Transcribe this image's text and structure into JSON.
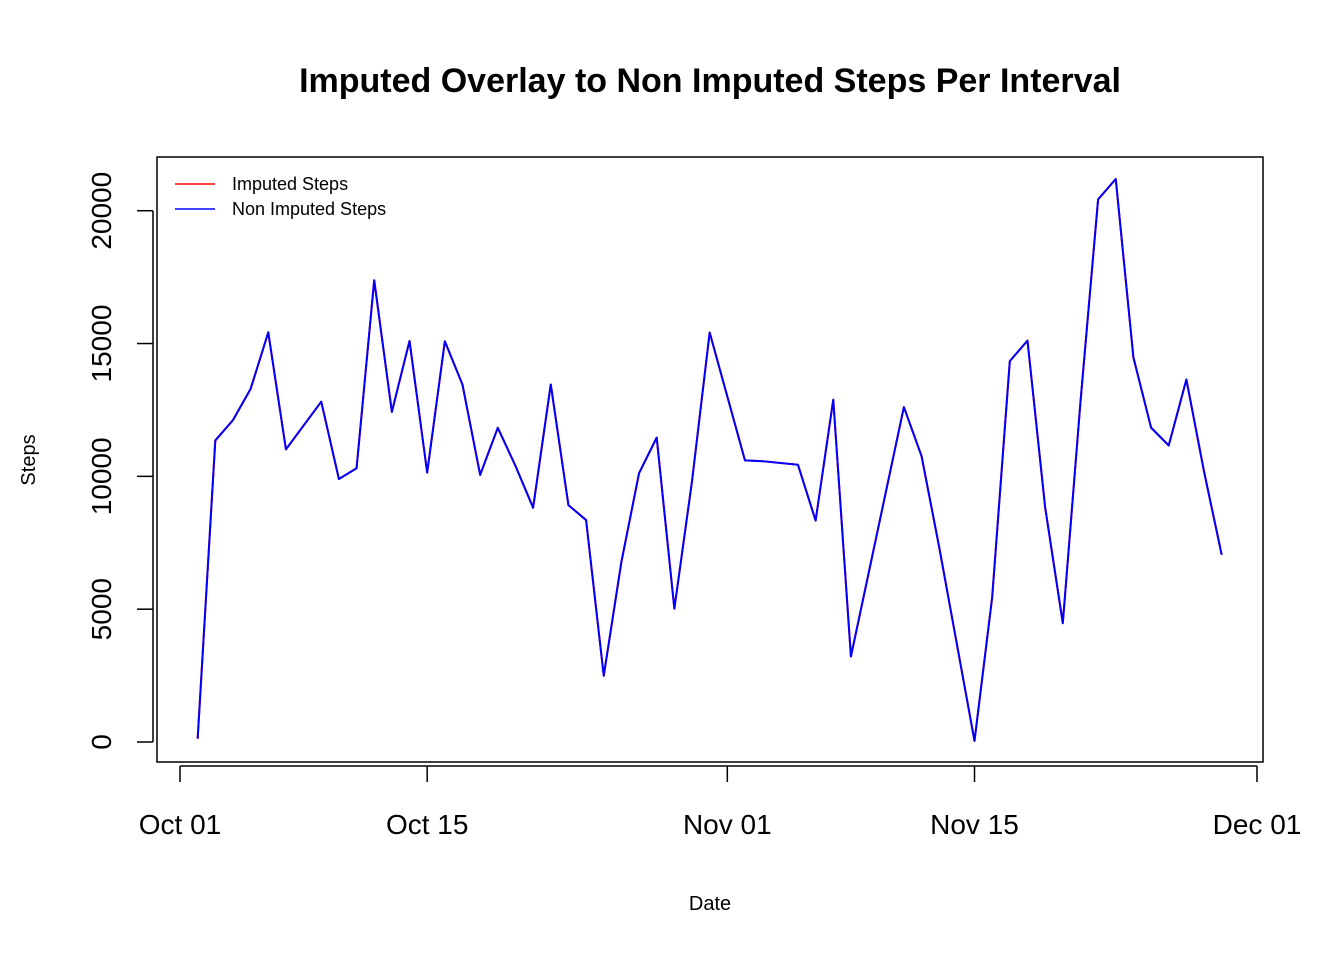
{
  "chart_data": {
    "type": "line",
    "title": "Imputed Overlay to Non Imputed Steps Per Interval",
    "xlabel": "Date",
    "ylabel": "Steps",
    "xlim": [
      "2012-10-01",
      "2012-12-01"
    ],
    "ylim": [
      0,
      21194
    ],
    "grid": false,
    "legend_position": "top-left",
    "x_ticks": [
      {
        "date": "2012-10-01",
        "label": "Oct 01"
      },
      {
        "date": "2012-10-15",
        "label": "Oct 15"
      },
      {
        "date": "2012-11-01",
        "label": "Nov 01"
      },
      {
        "date": "2012-11-15",
        "label": "Nov 15"
      },
      {
        "date": "2012-12-01",
        "label": "Dec 01"
      }
    ],
    "y_ticks": [
      0,
      5000,
      10000,
      15000,
      20000
    ],
    "series": [
      {
        "name": "Imputed Steps",
        "color": "#ff0000",
        "points": [
          [
            "2012-10-02",
            126
          ],
          [
            "2012-10-03",
            11352
          ],
          [
            "2012-10-04",
            12116
          ],
          [
            "2012-10-05",
            13294
          ],
          [
            "2012-10-06",
            15420
          ],
          [
            "2012-10-07",
            11015
          ],
          [
            "2012-10-09",
            12811
          ],
          [
            "2012-10-10",
            9900
          ],
          [
            "2012-10-11",
            10304
          ],
          [
            "2012-10-12",
            17382
          ],
          [
            "2012-10-13",
            12426
          ],
          [
            "2012-10-14",
            15098
          ],
          [
            "2012-10-15",
            10139
          ],
          [
            "2012-10-16",
            15084
          ],
          [
            "2012-10-17",
            13452
          ],
          [
            "2012-10-18",
            10056
          ],
          [
            "2012-10-19",
            11829
          ],
          [
            "2012-10-20",
            10395
          ],
          [
            "2012-10-21",
            8821
          ],
          [
            "2012-10-22",
            13460
          ],
          [
            "2012-10-23",
            8918
          ],
          [
            "2012-10-24",
            8355
          ],
          [
            "2012-10-25",
            2492
          ],
          [
            "2012-10-26",
            6778
          ],
          [
            "2012-10-27",
            10119
          ],
          [
            "2012-10-28",
            11458
          ],
          [
            "2012-10-29",
            5018
          ],
          [
            "2012-10-30",
            9819
          ],
          [
            "2012-10-31",
            15414
          ],
          [
            "2012-11-02",
            10600
          ],
          [
            "2012-11-03",
            10571
          ],
          [
            "2012-11-05",
            10439
          ],
          [
            "2012-11-06",
            8334
          ],
          [
            "2012-11-07",
            12883
          ],
          [
            "2012-11-08",
            3219
          ],
          [
            "2012-11-11",
            12608
          ],
          [
            "2012-11-12",
            10765
          ],
          [
            "2012-11-13",
            7336
          ],
          [
            "2012-11-15",
            41
          ],
          [
            "2012-11-16",
            5441
          ],
          [
            "2012-11-17",
            14339
          ],
          [
            "2012-11-18",
            15110
          ],
          [
            "2012-11-19",
            8841
          ],
          [
            "2012-11-20",
            4472
          ],
          [
            "2012-11-21",
            12787
          ],
          [
            "2012-11-22",
            20427
          ],
          [
            "2012-11-23",
            21194
          ],
          [
            "2012-11-24",
            14478
          ],
          [
            "2012-11-25",
            11834
          ],
          [
            "2012-11-26",
            11162
          ],
          [
            "2012-11-27",
            13646
          ],
          [
            "2012-11-28",
            10183
          ],
          [
            "2012-11-29",
            7047
          ]
        ]
      },
      {
        "name": "Non Imputed Steps",
        "color": "#0000ff",
        "points": [
          [
            "2012-10-02",
            126
          ],
          [
            "2012-10-03",
            11352
          ],
          [
            "2012-10-04",
            12116
          ],
          [
            "2012-10-05",
            13294
          ],
          [
            "2012-10-06",
            15420
          ],
          [
            "2012-10-07",
            11015
          ],
          [
            "2012-10-09",
            12811
          ],
          [
            "2012-10-10",
            9900
          ],
          [
            "2012-10-11",
            10304
          ],
          [
            "2012-10-12",
            17382
          ],
          [
            "2012-10-13",
            12426
          ],
          [
            "2012-10-14",
            15098
          ],
          [
            "2012-10-15",
            10139
          ],
          [
            "2012-10-16",
            15084
          ],
          [
            "2012-10-17",
            13452
          ],
          [
            "2012-10-18",
            10056
          ],
          [
            "2012-10-19",
            11829
          ],
          [
            "2012-10-20",
            10395
          ],
          [
            "2012-10-21",
            8821
          ],
          [
            "2012-10-22",
            13460
          ],
          [
            "2012-10-23",
            8918
          ],
          [
            "2012-10-24",
            8355
          ],
          [
            "2012-10-25",
            2492
          ],
          [
            "2012-10-26",
            6778
          ],
          [
            "2012-10-27",
            10119
          ],
          [
            "2012-10-28",
            11458
          ],
          [
            "2012-10-29",
            5018
          ],
          [
            "2012-10-30",
            9819
          ],
          [
            "2012-10-31",
            15414
          ],
          [
            "2012-11-02",
            10600
          ],
          [
            "2012-11-03",
            10571
          ],
          [
            "2012-11-05",
            10439
          ],
          [
            "2012-11-06",
            8334
          ],
          [
            "2012-11-07",
            12883
          ],
          [
            "2012-11-08",
            3219
          ],
          [
            "2012-11-11",
            12608
          ],
          [
            "2012-11-12",
            10765
          ],
          [
            "2012-11-13",
            7336
          ],
          [
            "2012-11-15",
            41
          ],
          [
            "2012-11-16",
            5441
          ],
          [
            "2012-11-17",
            14339
          ],
          [
            "2012-11-18",
            15110
          ],
          [
            "2012-11-19",
            8841
          ],
          [
            "2012-11-20",
            4472
          ],
          [
            "2012-11-21",
            12787
          ],
          [
            "2012-11-22",
            20427
          ],
          [
            "2012-11-23",
            21194
          ],
          [
            "2012-11-24",
            14478
          ],
          [
            "2012-11-25",
            11834
          ],
          [
            "2012-11-26",
            11162
          ],
          [
            "2012-11-27",
            13646
          ],
          [
            "2012-11-28",
            10183
          ],
          [
            "2012-11-29",
            7047
          ]
        ]
      }
    ]
  }
}
